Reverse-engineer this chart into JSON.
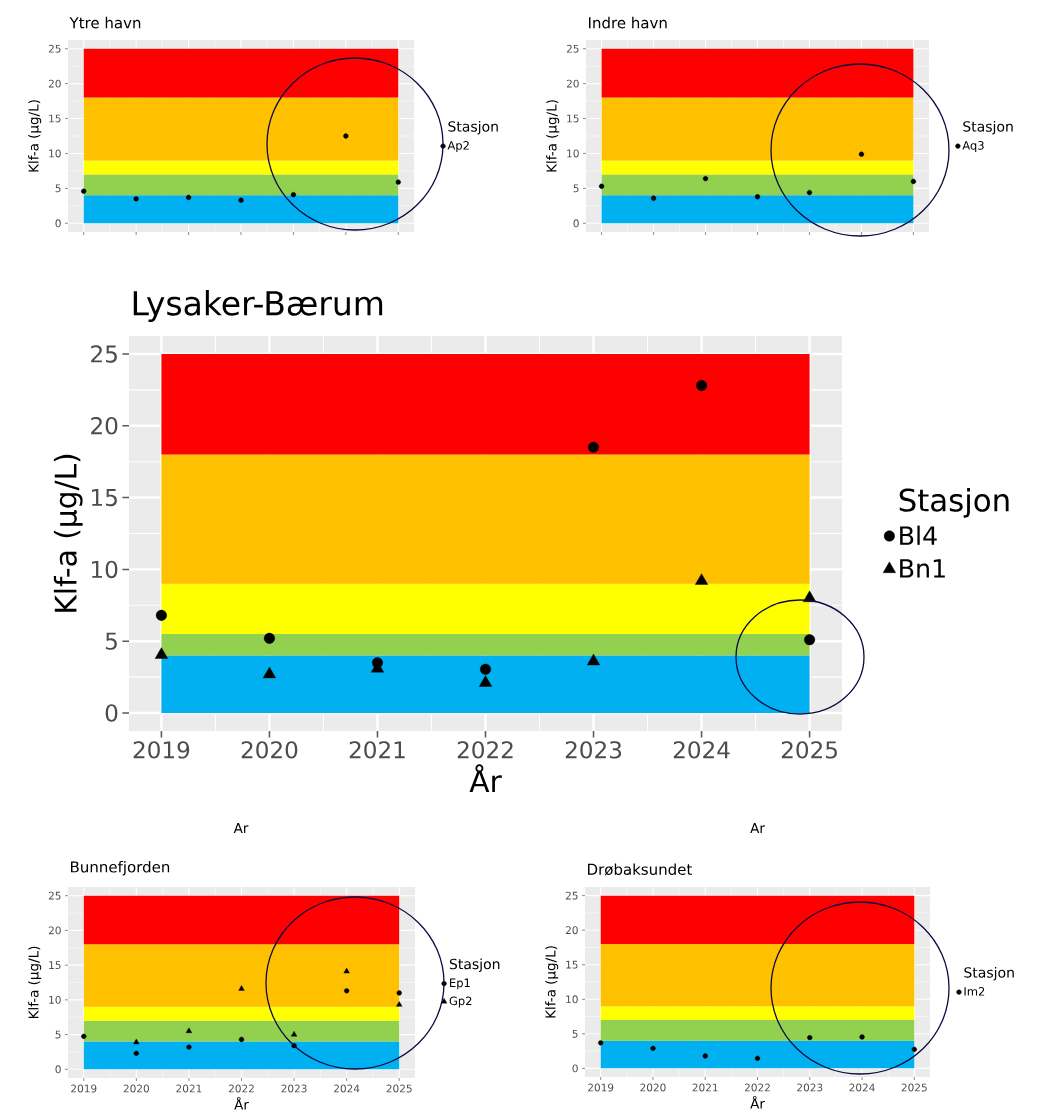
{
  "chart_data": [
    {
      "type": "scatter",
      "title": "Ytre havn",
      "ylabel": "Klf-a (µg/L)",
      "xlabel": "Ar",
      "legend_title": "Stasjon",
      "legend": "right",
      "grid": true,
      "tick_labels": "y",
      "x": [
        2019,
        2020,
        2021,
        2022,
        2023,
        2024,
        2025
      ],
      "xlim": [
        2018.7,
        2025.3
      ],
      "ylim": [
        -1.25,
        26.25
      ],
      "xticks": [
        2019,
        2020,
        2021,
        2022,
        2023,
        2024,
        2025
      ],
      "yticks": [
        0,
        5,
        10,
        15,
        20,
        25
      ],
      "bands": [
        {
          "axis": "y",
          "from": 0,
          "to": 4,
          "color": "#00b0f0"
        },
        {
          "axis": "y",
          "from": 4,
          "to": 7,
          "color": "#92d050"
        },
        {
          "axis": "y",
          "from": 7,
          "to": 9,
          "color": "#ffff00"
        },
        {
          "axis": "y",
          "from": 9,
          "to": 18,
          "color": "#ffc000"
        },
        {
          "axis": "y",
          "from": 18,
          "to": 25,
          "color": "#ff0000"
        }
      ],
      "series": [
        {
          "name": "Ap2",
          "color": "#000000",
          "marker": "circle",
          "values": [
            4.6,
            3.5,
            3.7,
            3.3,
            4.1,
            12.5,
            5.9
          ]
        }
      ]
    },
    {
      "type": "scatter",
      "title": "Indre havn",
      "ylabel": "Klf-a (µg/L)",
      "xlabel": "Ar",
      "legend_title": "Stasjon",
      "legend": "right",
      "grid": true,
      "tick_labels": "y",
      "x": [
        2019,
        2020,
        2021,
        2022,
        2023,
        2024,
        2025
      ],
      "xlim": [
        2018.7,
        2025.3
      ],
      "ylim": [
        -1.25,
        26.25
      ],
      "xticks": [
        2019,
        2020,
        2021,
        2022,
        2023,
        2024,
        2025
      ],
      "yticks": [
        0,
        5,
        10,
        15,
        20,
        25
      ],
      "bands": [
        {
          "axis": "y",
          "from": 0,
          "to": 4,
          "color": "#00b0f0"
        },
        {
          "axis": "y",
          "from": 4,
          "to": 7,
          "color": "#92d050"
        },
        {
          "axis": "y",
          "from": 7,
          "to": 9,
          "color": "#ffff00"
        },
        {
          "axis": "y",
          "from": 9,
          "to": 18,
          "color": "#ffc000"
        },
        {
          "axis": "y",
          "from": 18,
          "to": 25,
          "color": "#ff0000"
        }
      ],
      "series": [
        {
          "name": "Aq3",
          "color": "#000000",
          "marker": "circle",
          "values": [
            5.3,
            3.6,
            6.4,
            3.8,
            4.4,
            9.9,
            6.0
          ]
        }
      ]
    },
    {
      "type": "scatter",
      "title": "Lysaker-Bærum",
      "ylabel": "Klf-a (µg/L)",
      "xlabel": "År",
      "legend_title": "Stasjon",
      "legend": "right",
      "grid": true,
      "x": [
        2019,
        2020,
        2021,
        2022,
        2023,
        2024,
        2025
      ],
      "xlim": [
        2018.7,
        2025.3
      ],
      "ylim": [
        -1.25,
        26.25
      ],
      "xticks": [
        2019,
        2020,
        2021,
        2022,
        2023,
        2024,
        2025
      ],
      "yticks": [
        0,
        5,
        10,
        15,
        20,
        25
      ],
      "bands": [
        {
          "axis": "y",
          "from": 0,
          "to": 4,
          "color": "#00b0f0"
        },
        {
          "axis": "y",
          "from": 4,
          "to": 5.5,
          "color": "#92d050"
        },
        {
          "axis": "y",
          "from": 5.5,
          "to": 9,
          "color": "#ffff00"
        },
        {
          "axis": "y",
          "from": 9,
          "to": 18,
          "color": "#ffc000"
        },
        {
          "axis": "y",
          "from": 18,
          "to": 25,
          "color": "#ff0000"
        }
      ],
      "series": [
        {
          "name": "Bl4",
          "color": "#000000",
          "marker": "circle",
          "values": [
            6.8,
            5.2,
            3.5,
            3.05,
            18.5,
            22.8,
            5.1
          ]
        },
        {
          "name": "Bn1",
          "color": "#000000",
          "marker": "triangle",
          "values": [
            4.05,
            2.7,
            3.1,
            2.1,
            3.6,
            9.2,
            8.0
          ]
        }
      ]
    },
    {
      "type": "scatter",
      "title": "Bunnefjorden",
      "ylabel": "Klf-a (µg/L)",
      "xlabel": "År",
      "legend_title": "Stasjon",
      "legend": "right",
      "grid": true,
      "x": [
        2019,
        2020,
        2021,
        2022,
        2023,
        2024,
        2025
      ],
      "xlim": [
        2018.7,
        2025.3
      ],
      "ylim": [
        -1.25,
        26.25
      ],
      "xticks": [
        2019,
        2020,
        2021,
        2022,
        2023,
        2024,
        2025
      ],
      "yticks": [
        0,
        5,
        10,
        15,
        20,
        25
      ],
      "bands": [
        {
          "axis": "y",
          "from": 0,
          "to": 4,
          "color": "#00b0f0"
        },
        {
          "axis": "y",
          "from": 4,
          "to": 7,
          "color": "#92d050"
        },
        {
          "axis": "y",
          "from": 7,
          "to": 9,
          "color": "#ffff00"
        },
        {
          "axis": "y",
          "from": 9,
          "to": 18,
          "color": "#ffc000"
        },
        {
          "axis": "y",
          "from": 18,
          "to": 25,
          "color": "#ff0000"
        }
      ],
      "series": [
        {
          "name": "Ep1",
          "color": "#000000",
          "marker": "circle",
          "values": [
            4.75,
            2.3,
            3.2,
            4.3,
            3.4,
            11.3,
            11.0
          ]
        },
        {
          "name": "Gp2",
          "color": "#000000",
          "marker": "triangle",
          "values": [
            null,
            3.9,
            5.5,
            11.6,
            5.0,
            14.1,
            9.3
          ]
        }
      ]
    },
    {
      "type": "scatter",
      "title": "Drøbaksundet",
      "ylabel": "Klf-a (µg/L)",
      "xlabel": "År",
      "legend_title": "Stasjon",
      "legend": "right",
      "grid": true,
      "x": [
        2019,
        2020,
        2021,
        2022,
        2023,
        2024,
        2025
      ],
      "xlim": [
        2018.7,
        2025.3
      ],
      "ylim": [
        -1.25,
        26.25
      ],
      "xticks": [
        2019,
        2020,
        2021,
        2022,
        2023,
        2024,
        2025
      ],
      "yticks": [
        0,
        5,
        10,
        15,
        20,
        25
      ],
      "bands": [
        {
          "axis": "y",
          "from": 0,
          "to": 4,
          "color": "#00b0f0"
        },
        {
          "axis": "y",
          "from": 4,
          "to": 7,
          "color": "#92d050"
        },
        {
          "axis": "y",
          "from": 7,
          "to": 9,
          "color": "#ffff00"
        },
        {
          "axis": "y",
          "from": 9,
          "to": 18,
          "color": "#ffc000"
        },
        {
          "axis": "y",
          "from": 18,
          "to": 25,
          "color": "#ff0000"
        }
      ],
      "series": [
        {
          "name": "Im2",
          "color": "#000000",
          "marker": "circle",
          "values": [
            3.7,
            2.9,
            1.8,
            1.45,
            4.45,
            4.55,
            2.75
          ]
        }
      ]
    }
  ]
}
